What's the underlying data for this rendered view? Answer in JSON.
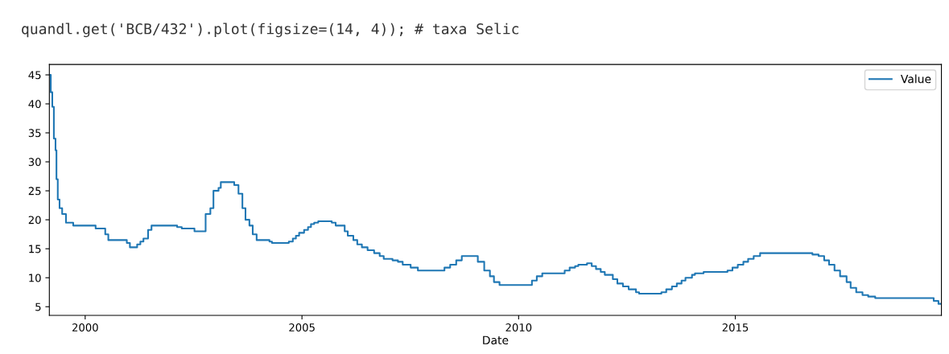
{
  "chart_data": {
    "type": "step",
    "annotations": [
      "quandl.get('BCB/432').plot(figsize=(14, 4)); # taxa Selic"
    ],
    "xlabel": "Date",
    "x": [
      "1999-03-05",
      "1999-03-17",
      "1999-03-30",
      "1999-04-12",
      "1999-04-26",
      "1999-05-04",
      "1999-05-15",
      "1999-05-30",
      "1999-06-21",
      "1999-07-23",
      "1999-09-22",
      "2000-03-29",
      "2000-06-18",
      "2000-07-14",
      "2000-12-17",
      "2001-01-12",
      "2001-03-14",
      "2001-04-10",
      "2001-05-06",
      "2001-06-14",
      "2001-07-13",
      "2002-02-14",
      "2002-03-25",
      "2002-07-10",
      "2002-10-12",
      "2002-11-21",
      "2002-12-17",
      "2003-01-29",
      "2003-02-17",
      "2003-06-10",
      "2003-07-16",
      "2003-08-18",
      "2003-09-13",
      "2003-10-16",
      "2003-11-13",
      "2003-12-16",
      "2004-04-02",
      "2004-04-23",
      "2004-09-12",
      "2004-10-16",
      "2004-11-11",
      "2004-12-08",
      "2005-01-19",
      "2005-02-21",
      "2005-03-18",
      "2005-04-14",
      "2005-05-18",
      "2005-09-09",
      "2005-10-12",
      "2005-12-27",
      "2006-01-22",
      "2006-03-10",
      "2006-04-12",
      "2006-05-21",
      "2006-07-08",
      "2006-09-01",
      "2006-10-18",
      "2006-11-21",
      "2007-02-03",
      "2007-03-21",
      "2007-04-30",
      "2007-07-06",
      "2007-09-05",
      "2008-04-16",
      "2008-06-03",
      "2008-07-24",
      "2008-09-09",
      "2009-01-22",
      "2009-03-17",
      "2009-05-04",
      "2009-06-07",
      "2009-07-24",
      "2010-04-23",
      "2010-06-03",
      "2010-07-19",
      "2011-01-24",
      "2011-03-07",
      "2011-04-22",
      "2011-05-19",
      "2011-07-31",
      "2011-09-09",
      "2011-10-15",
      "2011-11-24",
      "2011-12-28",
      "2012-03-05",
      "2012-04-12",
      "2012-05-29",
      "2012-07-16",
      "2012-09-16",
      "2012-10-12",
      "2013-04-18",
      "2013-05-29",
      "2013-07-16",
      "2013-08-26",
      "2013-10-05",
      "2013-11-07",
      "2014-01-01",
      "2014-01-26",
      "2014-04-09",
      "2014-10-27",
      "2014-12-08",
      "2015-01-22",
      "2015-03-10",
      "2015-04-19",
      "2015-06-05",
      "2015-07-29",
      "2016-10-12",
      "2016-12-03",
      "2017-01-19",
      "2017-03-01",
      "2017-04-16",
      "2017-06-02",
      "2017-07-27",
      "2017-08-30",
      "2017-10-16",
      "2017-12-08",
      "2018-01-25",
      "2018-03-25",
      "2019-07-31",
      "2019-09-09",
      "2019-10-04"
    ],
    "series": [
      {
        "name": "Value",
        "color": "#1f77b4",
        "values": [
          45,
          42,
          39.5,
          34,
          32,
          27,
          23.5,
          22,
          21,
          19.5,
          19,
          18.5,
          17.5,
          16.5,
          16,
          15.25,
          15.75,
          16.25,
          16.75,
          18.25,
          19,
          18.75,
          18.5,
          18,
          21,
          22,
          25,
          25.5,
          26.5,
          26,
          24.5,
          22,
          20,
          19,
          17.5,
          16.5,
          16.25,
          16,
          16.25,
          16.75,
          17.25,
          17.75,
          18.25,
          18.75,
          19.25,
          19.5,
          19.75,
          19.5,
          19,
          18,
          17.25,
          16.5,
          15.75,
          15.25,
          14.75,
          14.25,
          13.75,
          13.25,
          13,
          12.75,
          12.25,
          11.75,
          11.25,
          11.75,
          12.25,
          13,
          13.75,
          12.75,
          11.25,
          10.25,
          9.25,
          8.75,
          9.5,
          10.25,
          10.75,
          11.25,
          11.75,
          12,
          12.25,
          12.5,
          12,
          11.5,
          11,
          10.5,
          9.75,
          9,
          8.5,
          8,
          7.5,
          7.25,
          7.5,
          8,
          8.5,
          9,
          9.5,
          10,
          10.5,
          10.75,
          11,
          11.25,
          11.75,
          12.25,
          12.75,
          13.25,
          13.75,
          14.25,
          14,
          13.75,
          13,
          12.25,
          11.25,
          10.25,
          9.25,
          8.25,
          7.5,
          7,
          6.75,
          6.5,
          6,
          5.5,
          5.5
        ]
      }
    ],
    "xlim": [
      "1999-03-05",
      "2019-10-04"
    ],
    "xticks": [
      {
        "value": "2000-01-01",
        "label": "2000"
      },
      {
        "value": "2005-01-01",
        "label": "2005"
      },
      {
        "value": "2010-01-01",
        "label": "2010"
      },
      {
        "value": "2015-01-01",
        "label": "2015"
      }
    ],
    "ylim": [
      3.5,
      46.8
    ],
    "yticks": [
      5,
      10,
      15,
      20,
      25,
      30,
      35,
      40,
      45
    ],
    "legend": "top right",
    "grid": false
  }
}
